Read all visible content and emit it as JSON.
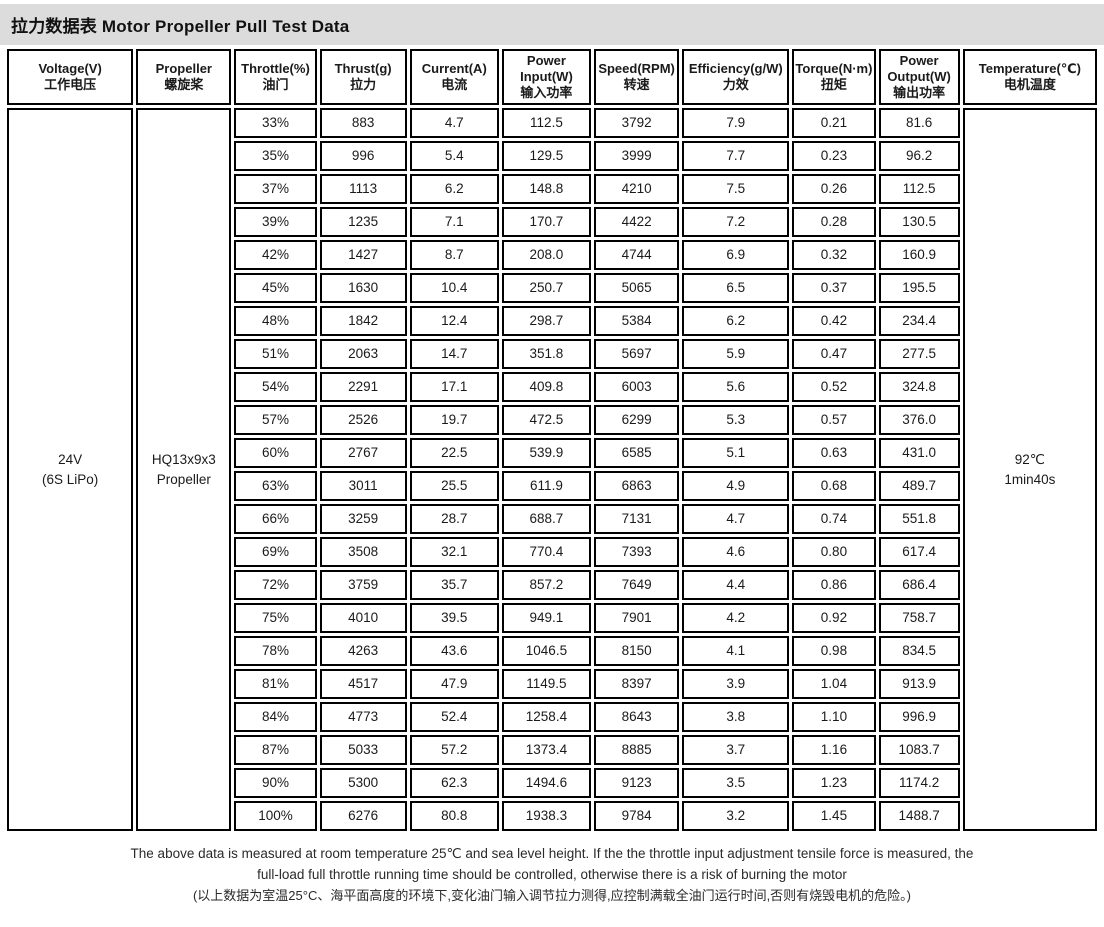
{
  "page": {
    "title": "拉力数据表 Motor Propeller Pull Test Data"
  },
  "table": {
    "columns": [
      {
        "en": "Voltage(V)",
        "zh": "工作电压"
      },
      {
        "en": "Propeller",
        "zh": "螺旋桨"
      },
      {
        "en": "Throttle(%)",
        "zh": "油门"
      },
      {
        "en": "Thrust(g)",
        "zh": "拉力"
      },
      {
        "en": "Current(A)",
        "zh": "电流"
      },
      {
        "en": "Power Input(W)",
        "zh": "输入功率"
      },
      {
        "en": "Speed(RPM)",
        "zh": "转速"
      },
      {
        "en": "Efficiency(g/W)",
        "zh": "力效"
      },
      {
        "en": "Torque(N·m)",
        "zh": "扭矩"
      },
      {
        "en": "Power Output(W)",
        "zh": "输出功率"
      },
      {
        "en": "Temperature(℃)",
        "zh": "电机温度"
      }
    ],
    "voltage": [
      "24V",
      "(6S LiPo)"
    ],
    "propeller": [
      "HQ13x9x3",
      "Propeller"
    ],
    "temperature": [
      "92℃",
      "1min40s"
    ],
    "rows": [
      [
        "33%",
        "883",
        "4.7",
        "112.5",
        "3792",
        "7.9",
        "0.21",
        "81.6"
      ],
      [
        "35%",
        "996",
        "5.4",
        "129.5",
        "3999",
        "7.7",
        "0.23",
        "96.2"
      ],
      [
        "37%",
        "1113",
        "6.2",
        "148.8",
        "4210",
        "7.5",
        "0.26",
        "112.5"
      ],
      [
        "39%",
        "1235",
        "7.1",
        "170.7",
        "4422",
        "7.2",
        "0.28",
        "130.5"
      ],
      [
        "42%",
        "1427",
        "8.7",
        "208.0",
        "4744",
        "6.9",
        "0.32",
        "160.9"
      ],
      [
        "45%",
        "1630",
        "10.4",
        "250.7",
        "5065",
        "6.5",
        "0.37",
        "195.5"
      ],
      [
        "48%",
        "1842",
        "12.4",
        "298.7",
        "5384",
        "6.2",
        "0.42",
        "234.4"
      ],
      [
        "51%",
        "2063",
        "14.7",
        "351.8",
        "5697",
        "5.9",
        "0.47",
        "277.5"
      ],
      [
        "54%",
        "2291",
        "17.1",
        "409.8",
        "6003",
        "5.6",
        "0.52",
        "324.8"
      ],
      [
        "57%",
        "2526",
        "19.7",
        "472.5",
        "6299",
        "5.3",
        "0.57",
        "376.0"
      ],
      [
        "60%",
        "2767",
        "22.5",
        "539.9",
        "6585",
        "5.1",
        "0.63",
        "431.0"
      ],
      [
        "63%",
        "3011",
        "25.5",
        "611.9",
        "6863",
        "4.9",
        "0.68",
        "489.7"
      ],
      [
        "66%",
        "3259",
        "28.7",
        "688.7",
        "7131",
        "4.7",
        "0.74",
        "551.8"
      ],
      [
        "69%",
        "3508",
        "32.1",
        "770.4",
        "7393",
        "4.6",
        "0.80",
        "617.4"
      ],
      [
        "72%",
        "3759",
        "35.7",
        "857.2",
        "7649",
        "4.4",
        "0.86",
        "686.4"
      ],
      [
        "75%",
        "4010",
        "39.5",
        "949.1",
        "7901",
        "4.2",
        "0.92",
        "758.7"
      ],
      [
        "78%",
        "4263",
        "43.6",
        "1046.5",
        "8150",
        "4.1",
        "0.98",
        "834.5"
      ],
      [
        "81%",
        "4517",
        "47.9",
        "1149.5",
        "8397",
        "3.9",
        "1.04",
        "913.9"
      ],
      [
        "84%",
        "4773",
        "52.4",
        "1258.4",
        "8643",
        "3.8",
        "1.10",
        "996.9"
      ],
      [
        "87%",
        "5033",
        "57.2",
        "1373.4",
        "8885",
        "3.7",
        "1.16",
        "1083.7"
      ],
      [
        "90%",
        "5300",
        "62.3",
        "1494.6",
        "9123",
        "3.5",
        "1.23",
        "1174.2"
      ],
      [
        "100%",
        "6276",
        "80.8",
        "1938.3",
        "9784",
        "3.2",
        "1.45",
        "1488.7"
      ]
    ]
  },
  "footer": {
    "line1": "The above data is measured at room temperature 25℃ and sea level height. If the the throttle input adjustment tensile force is measured, the",
    "line2": "full-load full throttle running time should be controlled, otherwise there is a risk of burning the motor",
    "line3": "(以上数据为室温25°C、海平面高度的环境下,变化油门输入调节拉力测得,应控制满载全油门运行时间,否则有烧毁电机的危险。)"
  }
}
